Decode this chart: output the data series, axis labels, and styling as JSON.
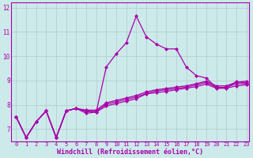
{
  "bg_color": "#cceaea",
  "line_color": "#aa00aa",
  "marker": "D",
  "marker_size": 2.0,
  "line_width": 0.9,
  "xlabel": "Windchill (Refroidissement éolien,°C)",
  "xlabel_fontsize": 6.0,
  "xlim_min": -0.5,
  "xlim_max": 23.3,
  "ylim_min": 6.5,
  "ylim_max": 12.2,
  "yticks": [
    7,
    8,
    9,
    10,
    11,
    12
  ],
  "xticks": [
    0,
    1,
    2,
    3,
    4,
    5,
    6,
    7,
    8,
    9,
    10,
    11,
    12,
    13,
    14,
    15,
    16,
    17,
    18,
    19,
    20,
    21,
    22,
    23
  ],
  "tick_fontsize": 5.0,
  "grid_color": "#aacccc",
  "series": [
    [
      7.5,
      6.65,
      7.3,
      7.75,
      6.65,
      7.75,
      7.85,
      7.75,
      7.7,
      9.55,
      10.1,
      10.55,
      11.65,
      10.8,
      10.5,
      10.3,
      10.3,
      9.55,
      9.2,
      9.1,
      8.7,
      8.7,
      8.95,
      8.9
    ],
    [
      7.5,
      6.65,
      7.3,
      7.75,
      6.65,
      7.75,
      7.85,
      7.65,
      7.7,
      7.95,
      8.05,
      8.15,
      8.25,
      8.45,
      8.5,
      8.55,
      8.62,
      8.68,
      8.75,
      8.85,
      8.68,
      8.68,
      8.78,
      8.82
    ],
    [
      7.5,
      6.65,
      7.3,
      7.75,
      6.65,
      7.75,
      7.85,
      7.72,
      7.73,
      8.02,
      8.12,
      8.22,
      8.32,
      8.47,
      8.57,
      8.62,
      8.67,
      8.73,
      8.82,
      8.92,
      8.72,
      8.72,
      8.87,
      8.87
    ],
    [
      7.5,
      6.65,
      7.3,
      7.75,
      6.65,
      7.75,
      7.85,
      7.78,
      7.78,
      8.08,
      8.18,
      8.28,
      8.38,
      8.53,
      8.62,
      8.67,
      8.73,
      8.78,
      8.87,
      8.97,
      8.78,
      8.78,
      8.93,
      8.97
    ]
  ]
}
